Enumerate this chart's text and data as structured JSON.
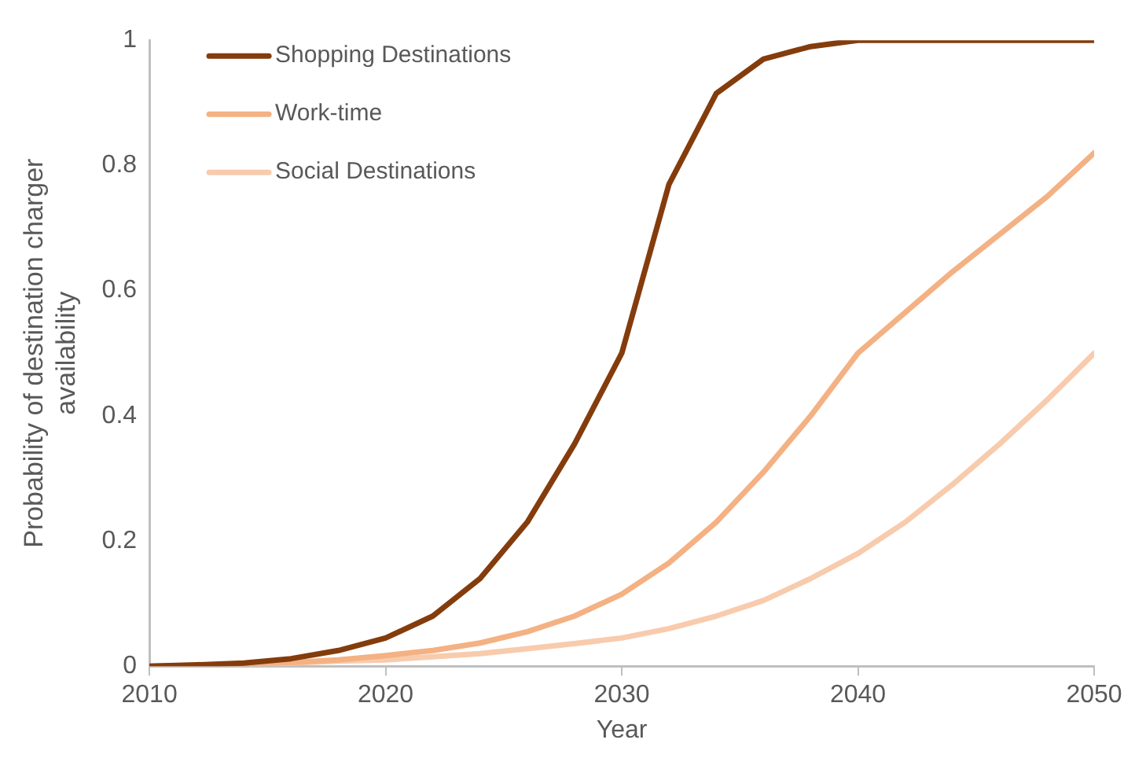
{
  "chart_data": {
    "type": "line",
    "xlabel": "Year",
    "ylabel": "Probability of destination charger availability",
    "x": [
      2010,
      2012,
      2014,
      2016,
      2018,
      2020,
      2022,
      2024,
      2026,
      2028,
      2030,
      2032,
      2034,
      2036,
      2038,
      2040,
      2042,
      2044,
      2046,
      2048,
      2050
    ],
    "series": [
      {
        "name": "Shopping Destinations",
        "color": "#843c0c",
        "values": [
          0,
          0.002,
          0.005,
          0.012,
          0.025,
          0.045,
          0.08,
          0.14,
          0.23,
          0.355,
          0.5,
          0.77,
          0.915,
          0.97,
          0.99,
          1,
          1,
          1,
          1,
          1,
          1
        ]
      },
      {
        "name": "Work-time",
        "color": "#f4b183",
        "values": [
          0,
          0.001,
          0.003,
          0.006,
          0.01,
          0.017,
          0.025,
          0.037,
          0.055,
          0.08,
          0.115,
          0.165,
          0.23,
          0.31,
          0.4,
          0.5,
          0.565,
          0.63,
          0.69,
          0.75,
          0.82
        ]
      },
      {
        "name": "Social Destinations",
        "color": "#f8cbad",
        "values": [
          0,
          0.001,
          0.002,
          0.005,
          0.008,
          0.01,
          0.015,
          0.02,
          0.028,
          0.036,
          0.045,
          0.06,
          0.08,
          0.105,
          0.14,
          0.18,
          0.23,
          0.29,
          0.355,
          0.425,
          0.5
        ]
      }
    ],
    "xlim": [
      2010,
      2050
    ],
    "xticks": [
      2010,
      2020,
      2030,
      2040,
      2050
    ],
    "ylim": [
      0,
      1
    ],
    "yticks": [
      0,
      0.2,
      0.4,
      0.6,
      0.8,
      1
    ],
    "grid": false,
    "legend": "top left",
    "marker": "none",
    "line_style": "solid"
  }
}
